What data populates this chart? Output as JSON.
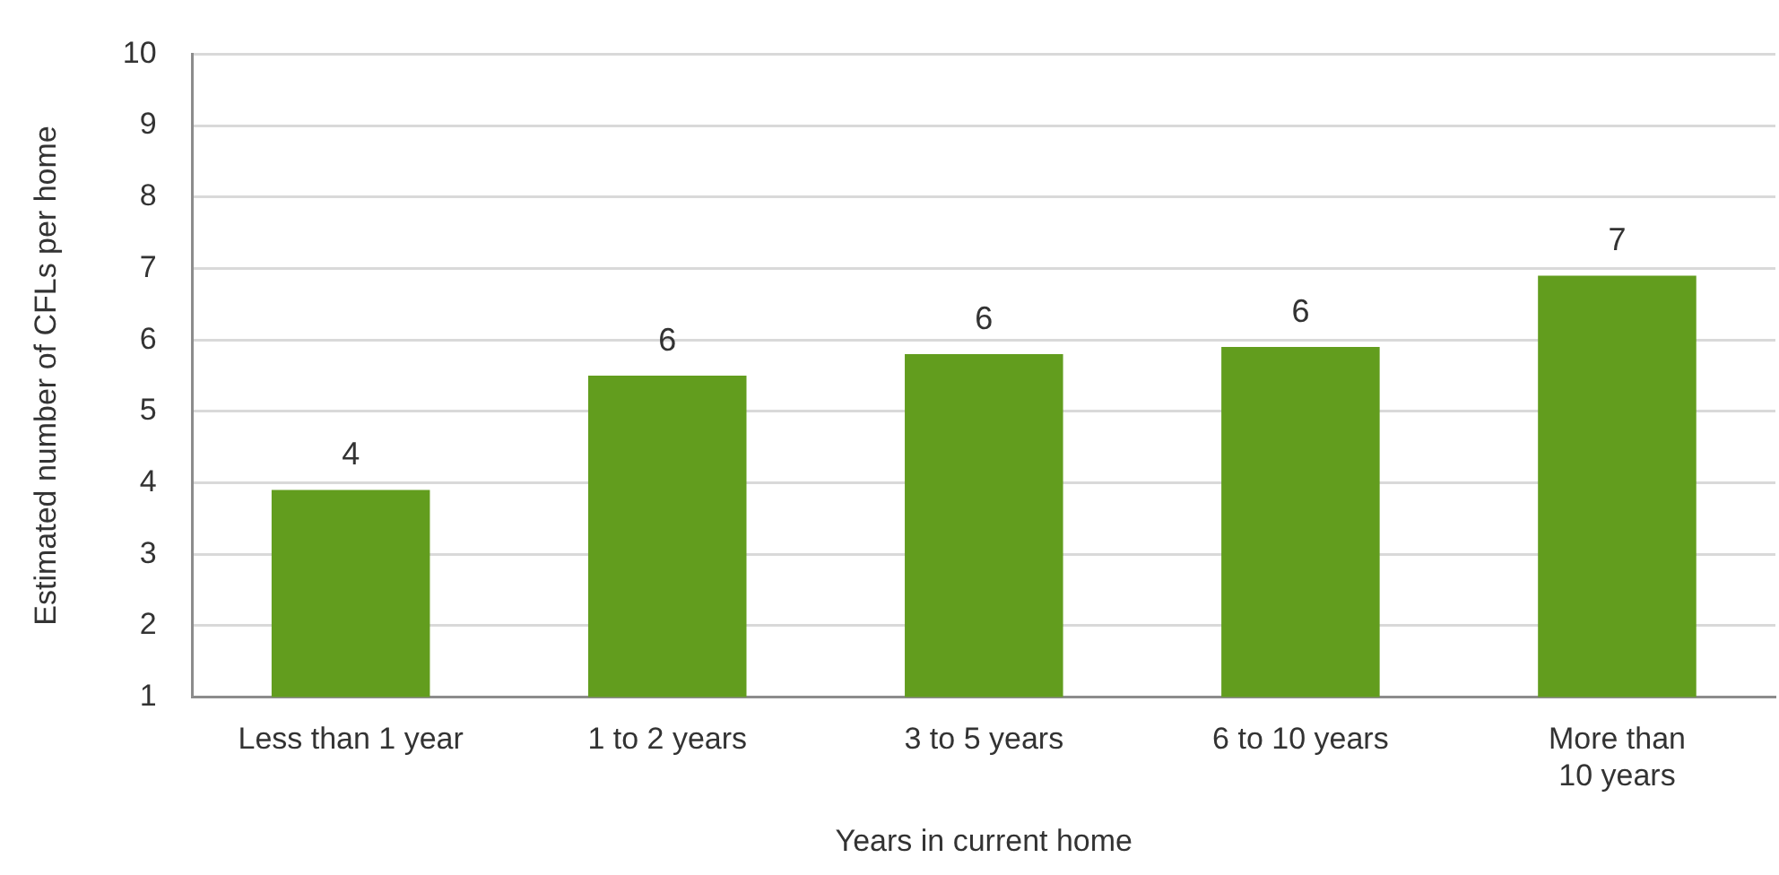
{
  "chart_data": {
    "type": "bar",
    "xlabel": "Years in current home",
    "ylabel": "Estimated number of CFLs per home",
    "categories": [
      "Less than 1 year",
      "1 to 2 years",
      "3 to 5 years",
      "6 to 10 years",
      "More than 10 years"
    ],
    "values": [
      3.9,
      5.5,
      5.8,
      5.9,
      6.9
    ],
    "color": "#629d1e",
    "value_labels": [
      "4",
      "6",
      "6",
      "6",
      "7"
    ],
    "ylim": [
      1,
      10
    ],
    "yticks": [
      1,
      2,
      3,
      4,
      5,
      6,
      7,
      8,
      9,
      10
    ],
    "grid": "y"
  }
}
